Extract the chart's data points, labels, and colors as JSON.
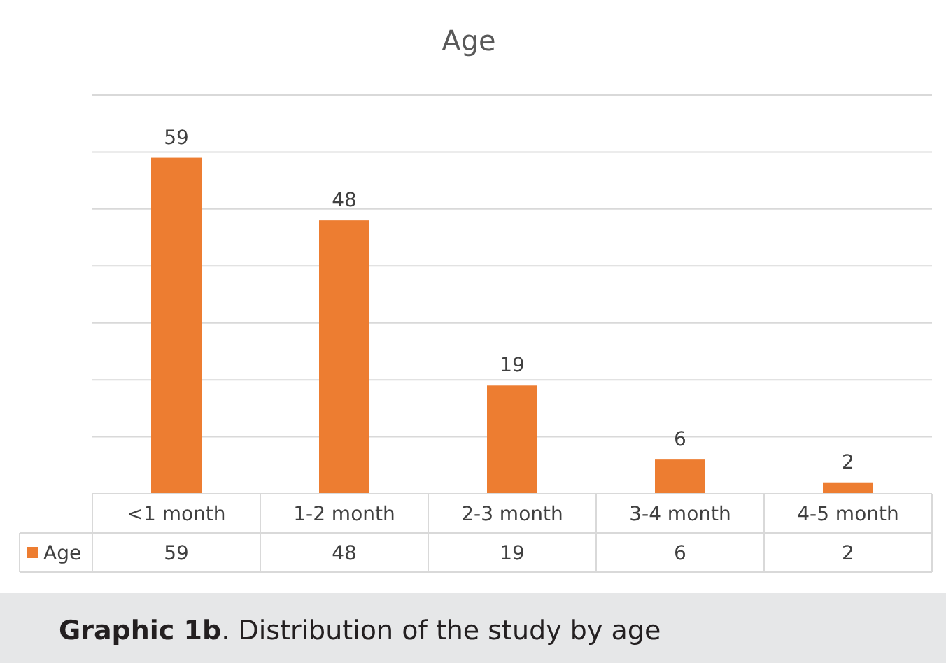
{
  "chart_data": {
    "type": "bar",
    "title": "Age",
    "categories": [
      "<1 month",
      "1-2 month",
      "2-3 month",
      "3-4 month",
      "4-5 month"
    ],
    "series": [
      {
        "name": "Age",
        "color": "#ed7d31",
        "values": [
          59,
          48,
          19,
          6,
          2
        ]
      }
    ],
    "ylim": [
      0,
      70
    ],
    "yticks": [
      {
        "value": 0,
        "label": null
      },
      {
        "value": 10,
        "label": null
      },
      {
        "value": 20,
        "label": null
      },
      {
        "value": 30,
        "label": null
      },
      {
        "value": 40,
        "label": null
      },
      {
        "value": 50,
        "label": null
      },
      {
        "value": 60,
        "label": null
      },
      {
        "value": 70,
        "label": null
      }
    ],
    "tick_labels": "x",
    "grid": "y",
    "legend": "bottom",
    "data_labels": true,
    "annotations": [
      "Graphic 1b. Distribution of the study by age",
      {
        "text": "59",
        "x": "<1 month",
        "y": 59
      },
      {
        "text": "48",
        "x": "1-2 month",
        "y": 48
      },
      {
        "text": "19",
        "x": "2-3 month",
        "y": 19
      },
      {
        "text": "6",
        "x": "3-4 month",
        "y": 6
      },
      {
        "text": "2",
        "x": "4-5 month",
        "y": 2
      }
    ]
  }
}
